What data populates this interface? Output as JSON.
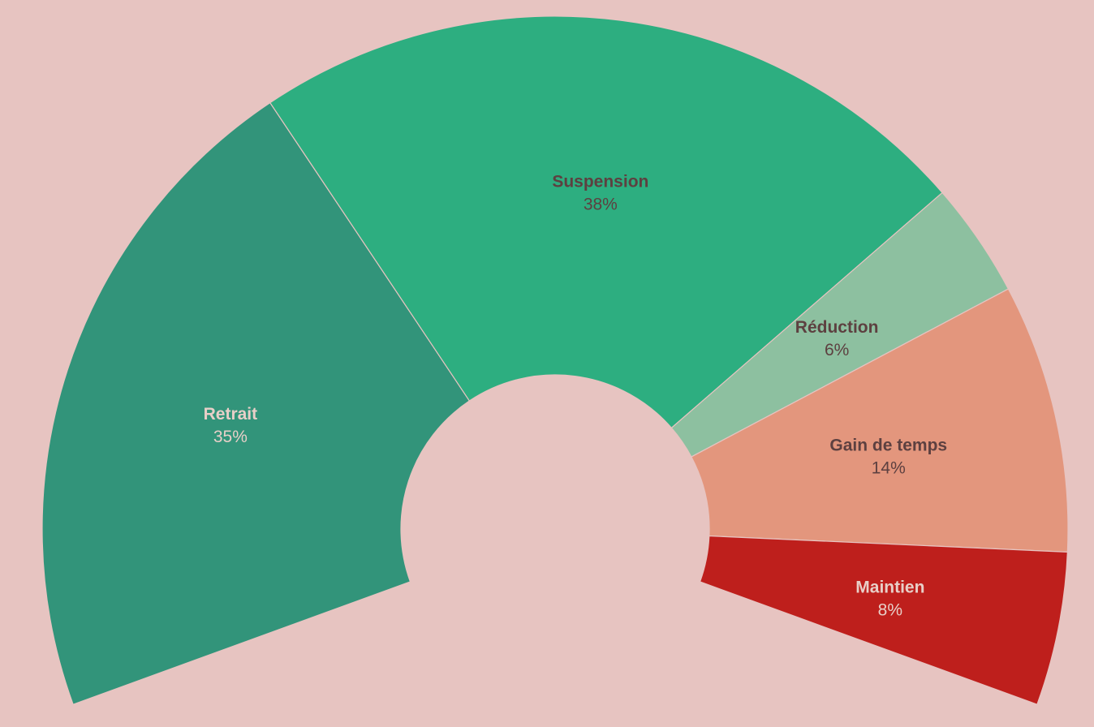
{
  "chart_data": {
    "type": "pie",
    "variant": "semicircle-donut",
    "background": "#e7c4c1",
    "slices": [
      {
        "name": "Retrait",
        "value_label": "35%",
        "value": 35,
        "color": "#32947a",
        "label_color": "#e8cfc8"
      },
      {
        "name": "Suspension",
        "value_label": "38%",
        "value": 38,
        "color": "#2dae80",
        "label_color": "#5d4040"
      },
      {
        "name": "Réduction",
        "value_label": "6%",
        "value": 6,
        "color": "#8dc0a0",
        "label_color": "#5d4040"
      },
      {
        "name": "Gain de temps",
        "value_label": "14%",
        "value": 14,
        "color": "#e3967d",
        "label_color": "#5d4040"
      },
      {
        "name": "Maintien",
        "value_label": "8%",
        "value": 8,
        "color": "#be1f1c",
        "label_color": "#e8cfc8"
      }
    ]
  }
}
